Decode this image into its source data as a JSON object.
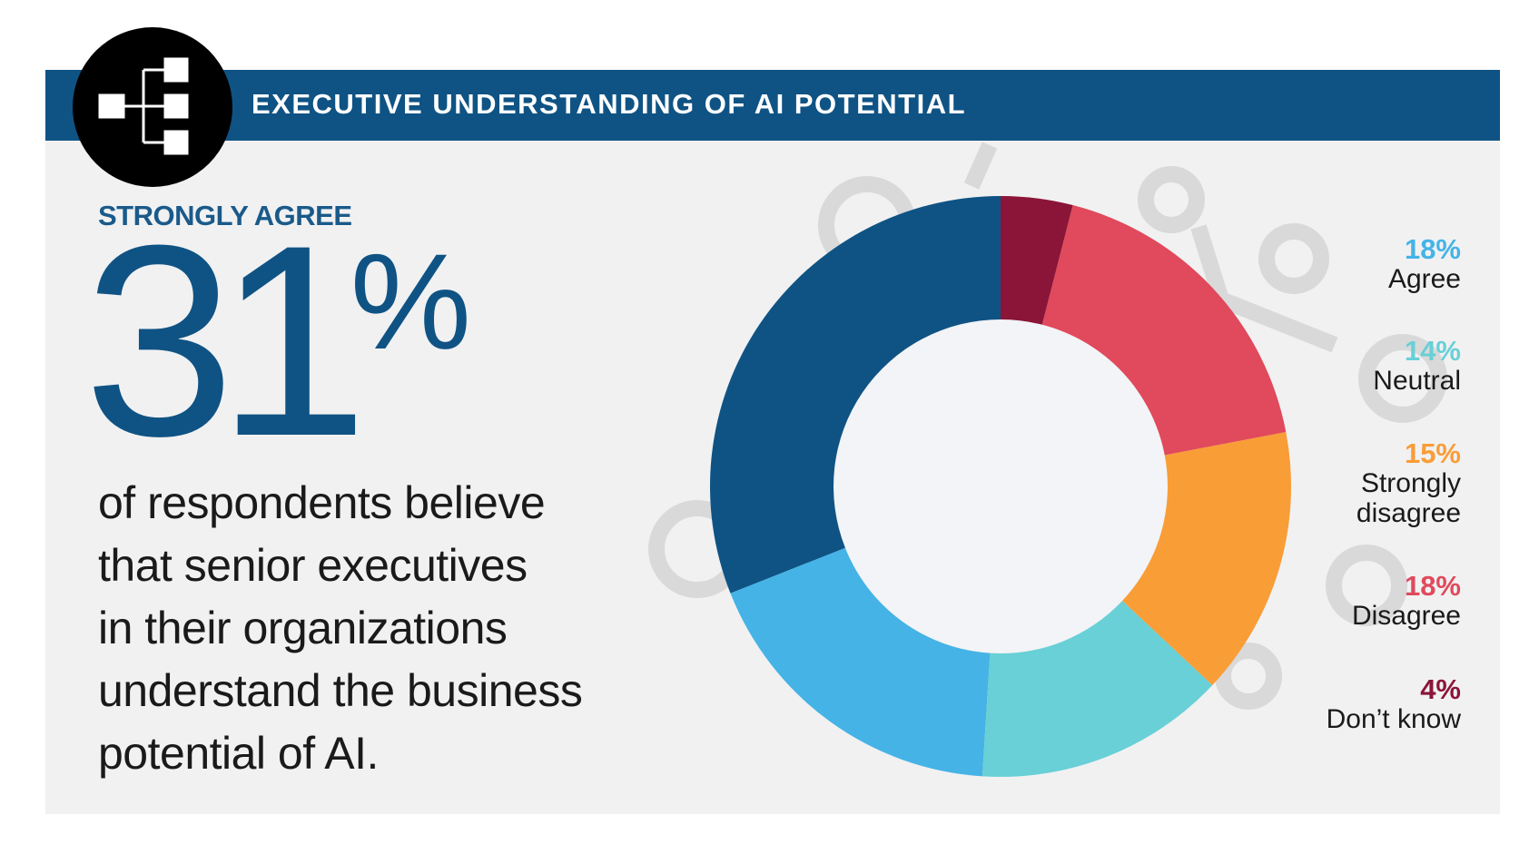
{
  "chart_data": {
    "type": "donut",
    "title": "EXECUTIVE UNDERSTANDING OF AI POTENTIAL",
    "categories": [
      "STRONGLY AGREE",
      "Agree",
      "Neutral",
      "Strongly disagree",
      "Disagree",
      "Don’t know"
    ],
    "values": [
      31,
      18,
      14,
      15,
      18,
      4
    ],
    "value_labels": [
      "31%",
      "18%",
      "14%",
      "15%",
      "18%",
      "4%"
    ],
    "colors": [
      "#0f5384",
      "#45b3e6",
      "#68d0d6",
      "#f99d37",
      "#e04a5c",
      "#8b1538"
    ],
    "description": [
      "of respondents believe",
      "that senior executives",
      "in their organizations",
      "understand the business",
      "potential of AI."
    ]
  }
}
